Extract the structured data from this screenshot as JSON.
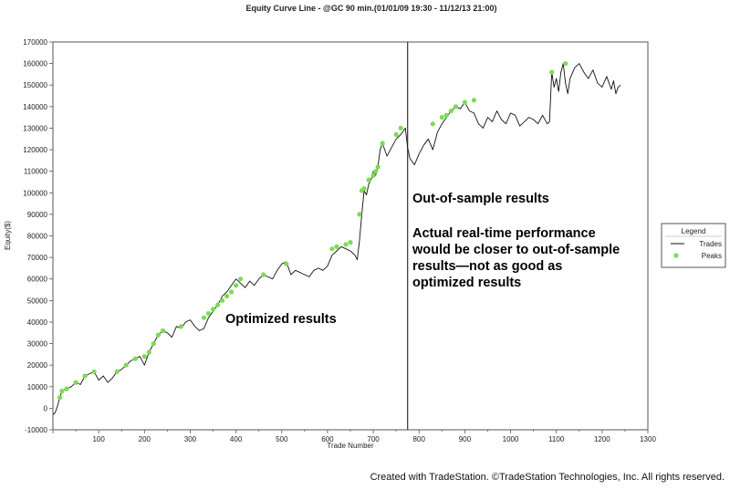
{
  "colors": {
    "line": "#111111",
    "peaks": "#7ddb55",
    "axis": "#555555",
    "divider": "#333333"
  },
  "chart_data": {
    "type": "line",
    "title": "Equity Curve Line - @GC 90 min.(01/01/09 19:30 - 11/12/13 21:00)",
    "xlabel": "Trade Number",
    "ylabel": "Equity($)",
    "xlim": [
      0,
      1300
    ],
    "ylim": [
      -10000,
      170000
    ],
    "x_ticks": [
      "100",
      "200",
      "300",
      "400",
      "500",
      "600",
      "700",
      "800",
      "900",
      "1000",
      "1100",
      "1200",
      "1300"
    ],
    "y_ticks": [
      "-10000",
      "0",
      "10000",
      "20000",
      "30000",
      "40000",
      "50000",
      "60000",
      "70000",
      "80000",
      "90000",
      "100000",
      "110000",
      "120000",
      "130000",
      "140000",
      "150000",
      "160000",
      "170000"
    ],
    "grid": false,
    "legend": {
      "title": "Legend",
      "position": "right",
      "entries": [
        "Trades",
        "Peaks"
      ]
    },
    "divider_x": 775,
    "series": [
      {
        "name": "Trades",
        "x": [
          0,
          5,
          10,
          15,
          20,
          30,
          40,
          50,
          60,
          70,
          80,
          90,
          100,
          110,
          120,
          130,
          140,
          150,
          160,
          170,
          180,
          190,
          200,
          210,
          220,
          230,
          240,
          250,
          260,
          270,
          280,
          290,
          300,
          310,
          320,
          330,
          340,
          350,
          360,
          370,
          380,
          390,
          400,
          410,
          420,
          430,
          440,
          450,
          460,
          470,
          480,
          490,
          500,
          510,
          520,
          530,
          540,
          550,
          560,
          570,
          580,
          590,
          600,
          610,
          620,
          630,
          640,
          650,
          660,
          665,
          670,
          675,
          680,
          685,
          690,
          695,
          700,
          705,
          710,
          715,
          720,
          730,
          740,
          750,
          760,
          770,
          775,
          780,
          790,
          800,
          810,
          820,
          830,
          840,
          850,
          860,
          870,
          880,
          890,
          900,
          910,
          920,
          930,
          940,
          950,
          960,
          970,
          980,
          990,
          1000,
          1010,
          1020,
          1030,
          1040,
          1050,
          1060,
          1070,
          1080,
          1085,
          1090,
          1095,
          1100,
          1105,
          1110,
          1115,
          1120,
          1125,
          1130,
          1140,
          1150,
          1160,
          1170,
          1180,
          1190,
          1200,
          1210,
          1220,
          1225,
          1230,
          1235,
          1240
        ],
        "y": [
          -3000,
          -2000,
          1000,
          5000,
          8000,
          9000,
          10000,
          12000,
          11000,
          15000,
          16000,
          17000,
          13000,
          15000,
          12000,
          14000,
          17000,
          18000,
          20000,
          22000,
          23000,
          24000,
          20000,
          26000,
          30000,
          34000,
          36000,
          35000,
          33000,
          38000,
          37000,
          40000,
          41000,
          38000,
          36000,
          37000,
          42000,
          45000,
          48000,
          52000,
          54000,
          57000,
          60000,
          58000,
          56000,
          59000,
          57000,
          60000,
          62000,
          61000,
          60000,
          64000,
          67000,
          68000,
          62000,
          64000,
          63000,
          62000,
          61000,
          64000,
          65000,
          64000,
          66000,
          71000,
          73000,
          75000,
          74000,
          73000,
          71000,
          69000,
          78000,
          90000,
          101000,
          99000,
          104000,
          106000,
          110000,
          108000,
          112000,
          120000,
          123000,
          117000,
          121000,
          125000,
          127000,
          130000,
          121000,
          116000,
          113000,
          118000,
          122000,
          125000,
          120000,
          128000,
          132000,
          135000,
          138000,
          140000,
          139000,
          142000,
          138000,
          137000,
          132000,
          130000,
          135000,
          133000,
          138000,
          134000,
          132000,
          137000,
          136000,
          131000,
          133000,
          135000,
          134000,
          132000,
          136000,
          132000,
          133000,
          156000,
          149000,
          153000,
          147000,
          156000,
          160000,
          151000,
          146000,
          153000,
          158000,
          160000,
          156000,
          153000,
          157000,
          151000,
          149000,
          154000,
          148000,
          152000,
          146000,
          149000,
          150000
        ]
      },
      {
        "name": "Peaks",
        "x": [
          15,
          20,
          30,
          50,
          70,
          90,
          140,
          160,
          180,
          200,
          210,
          220,
          230,
          240,
          280,
          330,
          340,
          350,
          360,
          370,
          380,
          390,
          400,
          410,
          460,
          510,
          610,
          620,
          640,
          650,
          670,
          675,
          680,
          690,
          700,
          705,
          710,
          720,
          750,
          760,
          830,
          850,
          860,
          870,
          880,
          900,
          920,
          1090,
          1120
        ],
        "y": [
          5000,
          8000,
          9000,
          12000,
          15000,
          17000,
          17000,
          20000,
          23000,
          24000,
          26000,
          30000,
          34000,
          36000,
          38000,
          42000,
          44000,
          46000,
          48000,
          50000,
          52000,
          54000,
          57000,
          60000,
          62000,
          67000,
          74000,
          75000,
          76000,
          77000,
          90000,
          101000,
          102000,
          106000,
          108000,
          110000,
          112000,
          123000,
          127000,
          130000,
          132000,
          135000,
          136000,
          138000,
          140000,
          142000,
          143000,
          156000,
          160000
        ]
      }
    ]
  },
  "annotations": {
    "out_of_sample": "Out-of-sample results",
    "actual_line1": "Actual real-time performance",
    "actual_line2": "would be closer to out-of-sample",
    "actual_line3": "results—not as good as",
    "actual_line4": "optimized results",
    "optimized": "Optimized results"
  },
  "footer": "Created with TradeStation. ©TradeStation Technologies, Inc. All rights reserved."
}
